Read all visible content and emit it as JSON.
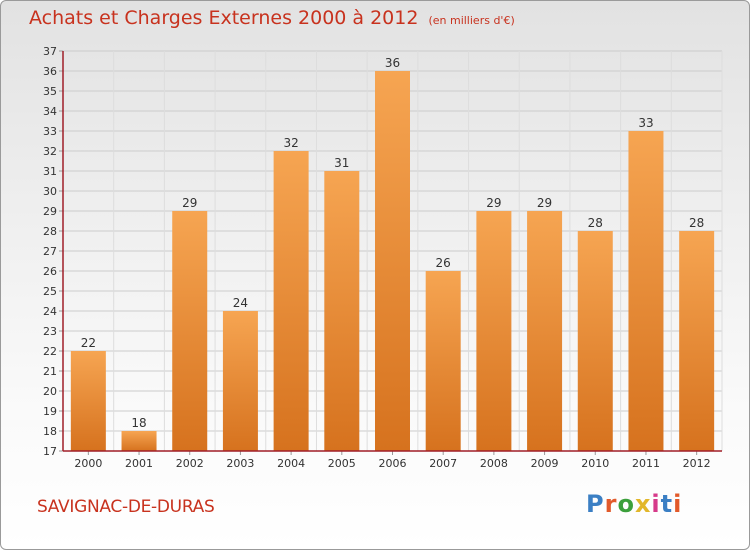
{
  "header": {
    "title": "Achats et Charges Externes 2000 à 2012",
    "subtitle": "(en milliers d'€)"
  },
  "footer": {
    "location": "SAVIGNAC-DE-DURAS",
    "logo_text": "Proxiti"
  },
  "colors": {
    "title": "#c8321e",
    "bar_light": "#f6a552",
    "bar_dark": "#d6721e",
    "grid": "#cccccc",
    "axis": "#a01e28"
  },
  "chart_data": {
    "type": "bar",
    "categories": [
      "2000",
      "2001",
      "2002",
      "2003",
      "2004",
      "2005",
      "2006",
      "2007",
      "2008",
      "2009",
      "2010",
      "2011",
      "2012"
    ],
    "values": [
      22,
      18,
      29,
      24,
      32,
      31,
      36,
      26,
      29,
      29,
      28,
      33,
      28
    ],
    "ylim": [
      17,
      37
    ],
    "yticks": [
      17,
      18,
      19,
      20,
      21,
      22,
      23,
      24,
      25,
      26,
      27,
      28,
      29,
      30,
      31,
      32,
      33,
      34,
      35,
      36,
      37
    ],
    "grid": true,
    "data_labels": true
  }
}
